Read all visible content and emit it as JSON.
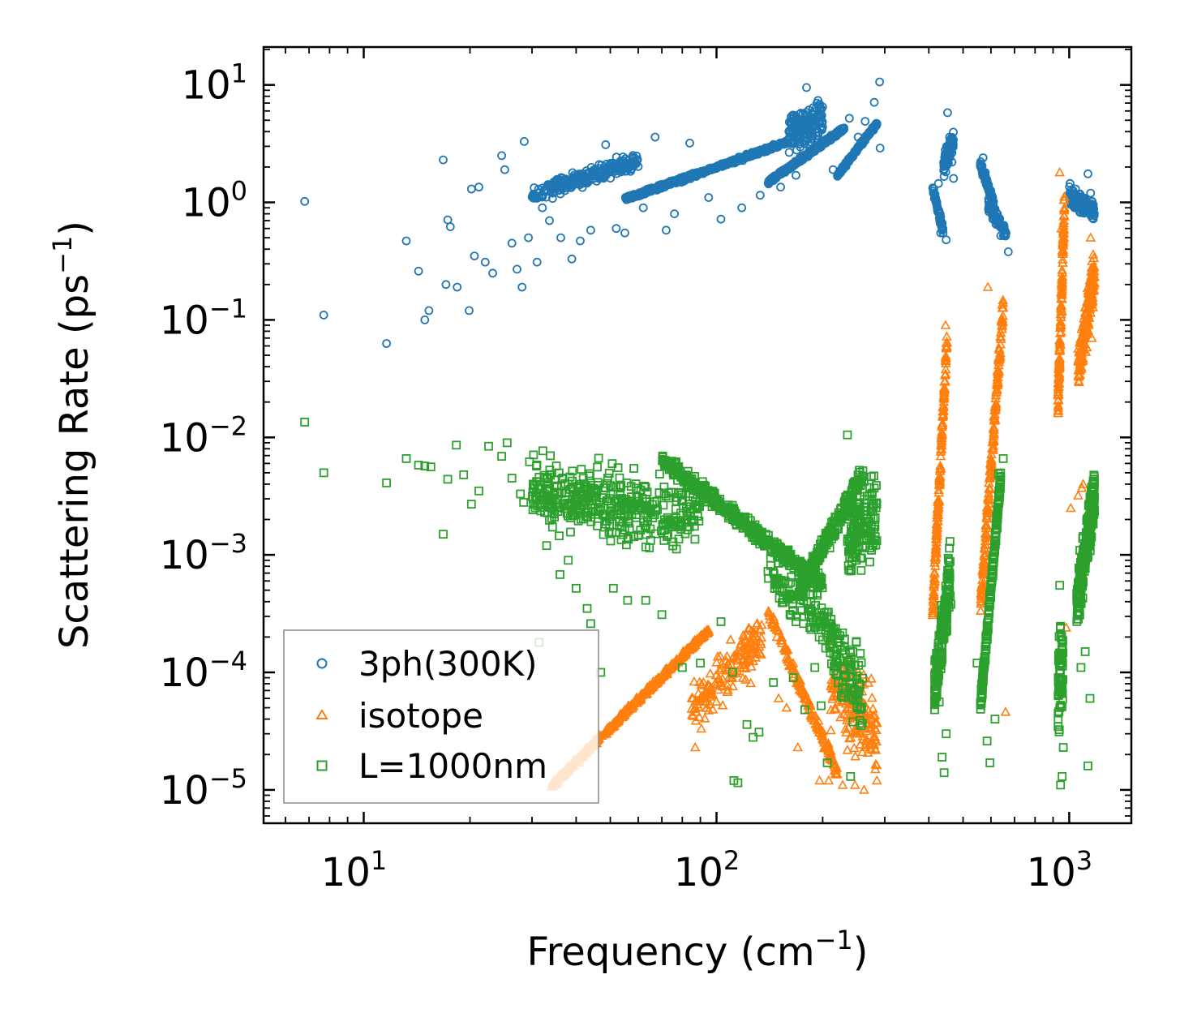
{
  "chart_data": {
    "type": "scatter",
    "title": "",
    "xlabel": "Frequency (cm",
    "xlabel_exponent": "−1",
    "xlabel_suffix": ")",
    "ylabel": "Scattering Rate (ps",
    "ylabel_exponent": "−1",
    "ylabel_suffix": ")",
    "xscale": "log",
    "yscale": "log",
    "xlim": [
      5.2,
      1500
    ],
    "ylim": [
      5.2e-06,
      21
    ],
    "x_ticks": [
      {
        "value": 10,
        "base": "10",
        "exp": "1"
      },
      {
        "value": 100,
        "base": "10",
        "exp": "2"
      },
      {
        "value": 1000,
        "base": "10",
        "exp": "3"
      }
    ],
    "y_ticks": [
      {
        "value": 10,
        "base": "10",
        "exp": "1"
      },
      {
        "value": 1,
        "base": "10",
        "exp": "0"
      },
      {
        "value": 0.1,
        "base": "10",
        "exp": "−1"
      },
      {
        "value": 0.01,
        "base": "10",
        "exp": "−2"
      },
      {
        "value": 0.001,
        "base": "10",
        "exp": "−3"
      },
      {
        "value": 0.0001,
        "base": "10",
        "exp": "−4"
      },
      {
        "value": 1e-05,
        "base": "10",
        "exp": "−5"
      }
    ],
    "legend_position": "lower-left",
    "series": [
      {
        "name": "3ph(300K)",
        "marker": "circle",
        "color": "#1f77b4",
        "points": [
          [
            6.8,
            1.02
          ],
          [
            7.7,
            0.11
          ],
          [
            11.6,
            0.063
          ],
          [
            13.2,
            0.47
          ],
          [
            14.3,
            0.26
          ],
          [
            14.9,
            0.1
          ],
          [
            15.3,
            0.12
          ],
          [
            16.8,
            2.3
          ],
          [
            17.1,
            0.2
          ],
          [
            17.3,
            0.71
          ],
          [
            17.6,
            0.62
          ],
          [
            18.4,
            0.19
          ],
          [
            19.9,
            0.12
          ],
          [
            20.2,
            1.3
          ],
          [
            20.6,
            0.35
          ],
          [
            21.2,
            1.35
          ],
          [
            22.1,
            0.31
          ],
          [
            23.2,
            0.25
          ],
          [
            24.6,
            2.5
          ],
          [
            25.1,
            1.9
          ],
          [
            26.3,
            0.45
          ],
          [
            27.2,
            0.27
          ],
          [
            28.1,
            0.19
          ],
          [
            28.5,
            3.3
          ],
          [
            29.3,
            0.5
          ],
          [
            31,
            0.31
          ],
          [
            32.1,
            0.9
          ],
          [
            33.6,
            0.7
          ],
          [
            36.2,
            0.5
          ],
          [
            38.9,
            0.33
          ],
          [
            41.1,
            0.47
          ],
          [
            44,
            0.58
          ],
          [
            48.5,
            3.1
          ],
          [
            52,
            0.6
          ],
          [
            55,
            0.55
          ],
          [
            62,
            0.9
          ],
          [
            67,
            3.6
          ],
          [
            72,
            0.58
          ],
          [
            76,
            0.8
          ],
          [
            84,
            3.2
          ],
          [
            95,
            1.1
          ],
          [
            103,
            0.72
          ],
          [
            118,
            0.9
          ],
          [
            133,
            1.15
          ],
          [
            152,
            1.35
          ],
          [
            168,
            1.7
          ],
          [
            180,
            9.5
          ],
          [
            196,
            4.8
          ],
          [
            214,
            1.9
          ],
          [
            238,
            5.2
          ],
          [
            252,
            3.6
          ],
          [
            264,
            4.9
          ],
          [
            280,
            7.1
          ],
          [
            290,
            10.6
          ],
          [
            291,
            2.9
          ],
          [
            426,
            1.45
          ],
          [
            432,
            0.55
          ],
          [
            448,
            0.48
          ],
          [
            452,
            5.8
          ],
          [
            458,
            3.6
          ],
          [
            465,
            2.2
          ],
          [
            470,
            1.6
          ],
          [
            570,
            2.4
          ],
          [
            578,
            1.8
          ],
          [
            590,
            1.3
          ],
          [
            604,
            0.95
          ],
          [
            620,
            0.65
          ],
          [
            640,
            0.52
          ],
          [
            662,
            0.55
          ],
          [
            672,
            0.38
          ],
          [
            1005,
            1.45
          ],
          [
            1042,
            1.3
          ],
          [
            1080,
            1.1
          ],
          [
            1105,
            0.85
          ],
          [
            1130,
            1.75
          ],
          [
            1150,
            1.2
          ],
          [
            1170,
            0.95
          ]
        ],
        "bands": [
          {
            "x": [
              30,
              60
            ],
            "y": [
              0.9,
              2.9
            ],
            "count": 260,
            "corr": 0.6
          },
          {
            "x": [
              55,
              160
            ],
            "y": [
              1.0,
              3.5
            ],
            "count": 450,
            "corr": 0.9
          },
          {
            "x": [
              140,
              230
            ],
            "y": [
              1.4,
              4.5
            ],
            "count": 320,
            "corr": 0.9
          },
          {
            "x": [
              160,
              200
            ],
            "y": [
              2.2,
              9.0
            ],
            "count": 160,
            "corr": 0.2
          },
          {
            "x": [
              220,
              285
            ],
            "y": [
              1.6,
              5.0
            ],
            "count": 180,
            "corr": 0.9
          },
          {
            "x": [
              410,
              440
            ],
            "y": [
              0.5,
              1.5
            ],
            "count": 60,
            "corr": -0.8
          },
          {
            "x": [
              440,
              470
            ],
            "y": [
              1.4,
              5.0
            ],
            "count": 70,
            "corr": 0.4
          },
          {
            "x": [
              560,
              610
            ],
            "y": [
              0.9,
              2.3
            ],
            "count": 90,
            "corr": -0.8
          },
          {
            "x": [
              590,
              660
            ],
            "y": [
              0.45,
              1.2
            ],
            "count": 70,
            "corr": -0.6
          },
          {
            "x": [
              1000,
              1180
            ],
            "y": [
              0.65,
              1.45
            ],
            "count": 160,
            "corr": -0.4
          }
        ]
      },
      {
        "name": "isotope",
        "marker": "triangle",
        "color": "#ff7f0e",
        "points": [
          [
            41,
            1.7e-05
          ],
          [
            87,
            2.3e-05
          ],
          [
            125,
            8.1e-05
          ],
          [
            150,
            6e-05
          ],
          [
            158,
            5e-05
          ],
          [
            170,
            2.3e-05
          ],
          [
            196,
            1.2e-05
          ],
          [
            208,
            1.2e-05
          ],
          [
            228,
            1.1e-05
          ],
          [
            247,
            1.1e-05
          ],
          [
            262,
            1e-05
          ],
          [
            275,
            2.2e-05
          ],
          [
            282,
            1.5e-05
          ],
          [
            285,
            1.2e-05
          ],
          [
            420,
            0.00013
          ],
          [
            446,
            0.09
          ],
          [
            588,
            0.19
          ],
          [
            660,
            4.6e-05
          ],
          [
            940,
            1.8
          ],
          [
            950,
            0.6
          ],
          [
            980,
            0.00024
          ],
          [
            1010,
            0.0025
          ],
          [
            1060,
            0.0032
          ],
          [
            1086,
            0.0037
          ],
          [
            1095,
            0.004
          ],
          [
            1150,
            0.5
          ],
          [
            1160,
            0.07
          ]
        ],
        "bands": [
          {
            "x": [
              34,
              95
            ],
            "y": [
              1e-05,
              0.00025
            ],
            "count": 520,
            "corr": 0.95
          },
          {
            "x": [
              85,
              135
            ],
            "y": [
              2.5e-05,
              0.0004
            ],
            "count": 160,
            "corr": 0.5
          },
          {
            "x": [
              140,
              220
            ],
            "y": [
              1.2e-05,
              0.0004
            ],
            "count": 170,
            "corr": -0.9
          },
          {
            "x": [
              210,
              285
            ],
            "y": [
              1e-05,
              0.00025
            ],
            "count": 170,
            "corr": -0.3
          },
          {
            "x": [
              410,
              450
            ],
            "y": [
              0.00025,
              0.09
            ],
            "count": 170,
            "corr": 0.9
          },
          {
            "x": [
              560,
              650
            ],
            "y": [
              0.00025,
              0.19
            ],
            "count": 190,
            "corr": 0.9
          },
          {
            "x": [
              930,
              970
            ],
            "y": [
              0.012,
              1.8
            ],
            "count": 130,
            "corr": 0.8
          },
          {
            "x": [
              1060,
              1180
            ],
            "y": [
              0.018,
              0.5
            ],
            "count": 200,
            "corr": 0.6
          }
        ]
      },
      {
        "name": "L=1000nm",
        "marker": "square",
        "color": "#2ca02c",
        "points": [
          [
            6.8,
            0.0135
          ],
          [
            7.7,
            0.005
          ],
          [
            11.6,
            0.0041
          ],
          [
            13.2,
            0.0066
          ],
          [
            14.3,
            0.0058
          ],
          [
            14.9,
            0.0057
          ],
          [
            15.5,
            0.0056
          ],
          [
            16.8,
            0.0015
          ],
          [
            17.3,
            0.0044
          ],
          [
            18.3,
            0.0086
          ],
          [
            19.2,
            0.0048
          ],
          [
            20.2,
            0.0027
          ],
          [
            21.2,
            0.0035
          ],
          [
            22.6,
            0.0084
          ],
          [
            24.6,
            0.0069
          ],
          [
            25.5,
            0.009
          ],
          [
            26.3,
            0.0045
          ],
          [
            27.8,
            0.0033
          ],
          [
            28.4,
            0.0028
          ],
          [
            29.5,
            0.0062
          ],
          [
            30.3,
            0.0027
          ],
          [
            31.4,
            0.00018
          ],
          [
            33,
            0.0012
          ],
          [
            36,
            0.00068
          ],
          [
            38,
            0.0009
          ],
          [
            40,
            0.00052
          ],
          [
            43,
            0.00035
          ],
          [
            44,
            0.00026
          ],
          [
            47,
            0.0001
          ],
          [
            51,
            0.00052
          ],
          [
            56,
            0.00041
          ],
          [
            63,
            0.00041
          ],
          [
            70,
            0.00031
          ],
          [
            80,
            0.00011
          ],
          [
            90,
            0.00012
          ],
          [
            103,
            0.00027
          ],
          [
            111,
            0.0001
          ],
          [
            112,
            1.2e-05
          ],
          [
            115,
            1.15e-05
          ],
          [
            122,
            3.6e-05
          ],
          [
            127,
            2.8e-05
          ],
          [
            132,
            3.1e-05
          ],
          [
            145,
            8.2e-05
          ],
          [
            165,
            9e-05
          ],
          [
            178,
            4.8e-05
          ],
          [
            190,
            0.00011
          ],
          [
            198,
            5.2e-05
          ],
          [
            206,
            1.7e-05
          ],
          [
            218,
            9.6e-05
          ],
          [
            235,
            0.0105
          ],
          [
            240,
            1.3e-05
          ],
          [
            249,
            0.00018
          ],
          [
            255,
            3.9e-05
          ],
          [
            262,
            0.0042
          ],
          [
            272,
            0.00087
          ],
          [
            280,
            0.0037
          ],
          [
            428,
            5.6e-05
          ],
          [
            436,
            1.9e-05
          ],
          [
            442,
            1.4e-05
          ],
          [
            448,
            3e-05
          ],
          [
            462,
            0.00038
          ],
          [
            548,
            0.00012
          ],
          [
            585,
            2.6e-05
          ],
          [
            596,
            1.7e-05
          ],
          [
            616,
            4e-05
          ],
          [
            630,
            0.0049
          ],
          [
            650,
            0.0066
          ],
          [
            940,
            0.00055
          ],
          [
            945,
            1.1e-05
          ],
          [
            955,
            1.3e-05
          ],
          [
            962,
            2.3e-05
          ],
          [
            1080,
            0.00011
          ],
          [
            1110,
            0.00015
          ],
          [
            1130,
            1.6e-05
          ],
          [
            1145,
            6e-05
          ]
        ],
        "bands": [
          {
            "x": [
              30,
              90
            ],
            "y": [
              0.0008,
              0.009
            ],
            "count": 420,
            "corr": -0.2
          },
          {
            "x": [
              70,
              200
            ],
            "y": [
              0.00045,
              0.008
            ],
            "count": 520,
            "corr": -0.85
          },
          {
            "x": [
              170,
              260
            ],
            "y": [
              0.00035,
              0.0065
            ],
            "count": 240,
            "corr": 0.8
          },
          {
            "x": [
              235,
              285
            ],
            "y": [
              0.0005,
              0.006
            ],
            "count": 140,
            "corr": 0.2
          },
          {
            "x": [
              210,
              260
            ],
            "y": [
              2e-05,
              0.0005
            ],
            "count": 90,
            "corr": -0.3
          },
          {
            "x": [
              140,
              215
            ],
            "y": [
              0.00012,
              0.0012
            ],
            "count": 110,
            "corr": -0.5
          },
          {
            "x": [
              415,
              460
            ],
            "y": [
              3e-05,
              0.0016
            ],
            "count": 180,
            "corr": 0.6
          },
          {
            "x": [
              560,
              640
            ],
            "y": [
              4e-05,
              0.006
            ],
            "count": 240,
            "corr": 0.9
          },
          {
            "x": [
              930,
              960
            ],
            "y": [
              2e-05,
              0.00045
            ],
            "count": 70,
            "corr": 0.1
          },
          {
            "x": [
              1050,
              1180
            ],
            "y": [
              0.00018,
              0.007
            ],
            "count": 260,
            "corr": 0.6
          }
        ]
      }
    ]
  }
}
